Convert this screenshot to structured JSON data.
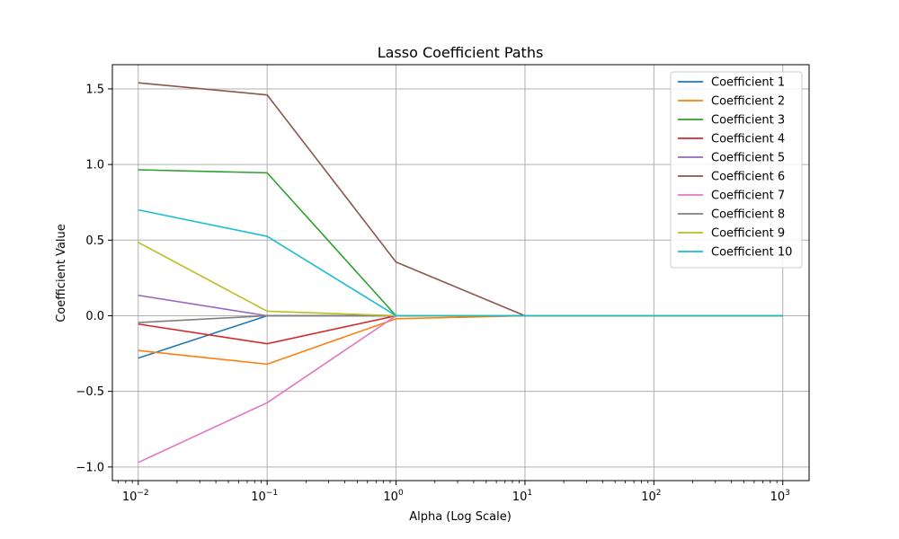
{
  "chart_data": {
    "type": "line",
    "title": "Lasso Coefficient Paths",
    "xlabel": "Alpha (Log Scale)",
    "ylabel": "Coefficient Value",
    "xscale": "log",
    "x": [
      0.01,
      0.1,
      1,
      10,
      100,
      1000
    ],
    "x_tick_labels": [
      {
        "base": "10",
        "exp": "−2"
      },
      {
        "base": "10",
        "exp": "−1"
      },
      {
        "base": "10",
        "exp": "0"
      },
      {
        "base": "10",
        "exp": "1"
      },
      {
        "base": "10",
        "exp": "2"
      },
      {
        "base": "10",
        "exp": "3"
      }
    ],
    "y_ticks": [
      -1.0,
      -0.5,
      0.0,
      0.5,
      1.0,
      1.5
    ],
    "y_tick_labels": [
      "−1.0",
      "−0.5",
      "0.0",
      "0.5",
      "1.0",
      "1.5"
    ],
    "xlim": [
      0.0063,
      1600
    ],
    "ylim": [
      -1.09,
      1.66
    ],
    "grid": true,
    "legend_position": "top-right",
    "series": [
      {
        "name": "Coefficient 1",
        "color": "#1f77b4",
        "values": [
          -0.28,
          0.0,
          0.0,
          0.0,
          0.0,
          0.0
        ]
      },
      {
        "name": "Coefficient 2",
        "color": "#ff7f0e",
        "values": [
          -0.23,
          -0.32,
          -0.02,
          0.0,
          0.0,
          0.0
        ]
      },
      {
        "name": "Coefficient 3",
        "color": "#2ca02c",
        "values": [
          0.965,
          0.945,
          0.0,
          0.0,
          0.0,
          0.0
        ]
      },
      {
        "name": "Coefficient 4",
        "color": "#d62728",
        "values": [
          -0.055,
          -0.185,
          0.0,
          0.0,
          0.0,
          0.0
        ]
      },
      {
        "name": "Coefficient 5",
        "color": "#9467bd",
        "values": [
          0.135,
          0.0,
          0.0,
          0.0,
          0.0,
          0.0
        ]
      },
      {
        "name": "Coefficient 6",
        "color": "#8c564b",
        "values": [
          1.54,
          1.46,
          0.355,
          0.0,
          0.0,
          0.0
        ]
      },
      {
        "name": "Coefficient 7",
        "color": "#e377c2",
        "values": [
          -0.97,
          -0.575,
          0.0,
          0.0,
          0.0,
          0.0
        ]
      },
      {
        "name": "Coefficient 8",
        "color": "#7f7f7f",
        "values": [
          -0.045,
          0.0,
          0.0,
          0.0,
          0.0,
          0.0
        ]
      },
      {
        "name": "Coefficient 9",
        "color": "#bcbd22",
        "values": [
          0.485,
          0.03,
          0.0,
          0.0,
          0.0,
          0.0
        ]
      },
      {
        "name": "Coefficient 10",
        "color": "#17becf",
        "values": [
          0.7,
          0.525,
          0.0,
          0.0,
          0.0,
          0.0
        ]
      }
    ]
  }
}
